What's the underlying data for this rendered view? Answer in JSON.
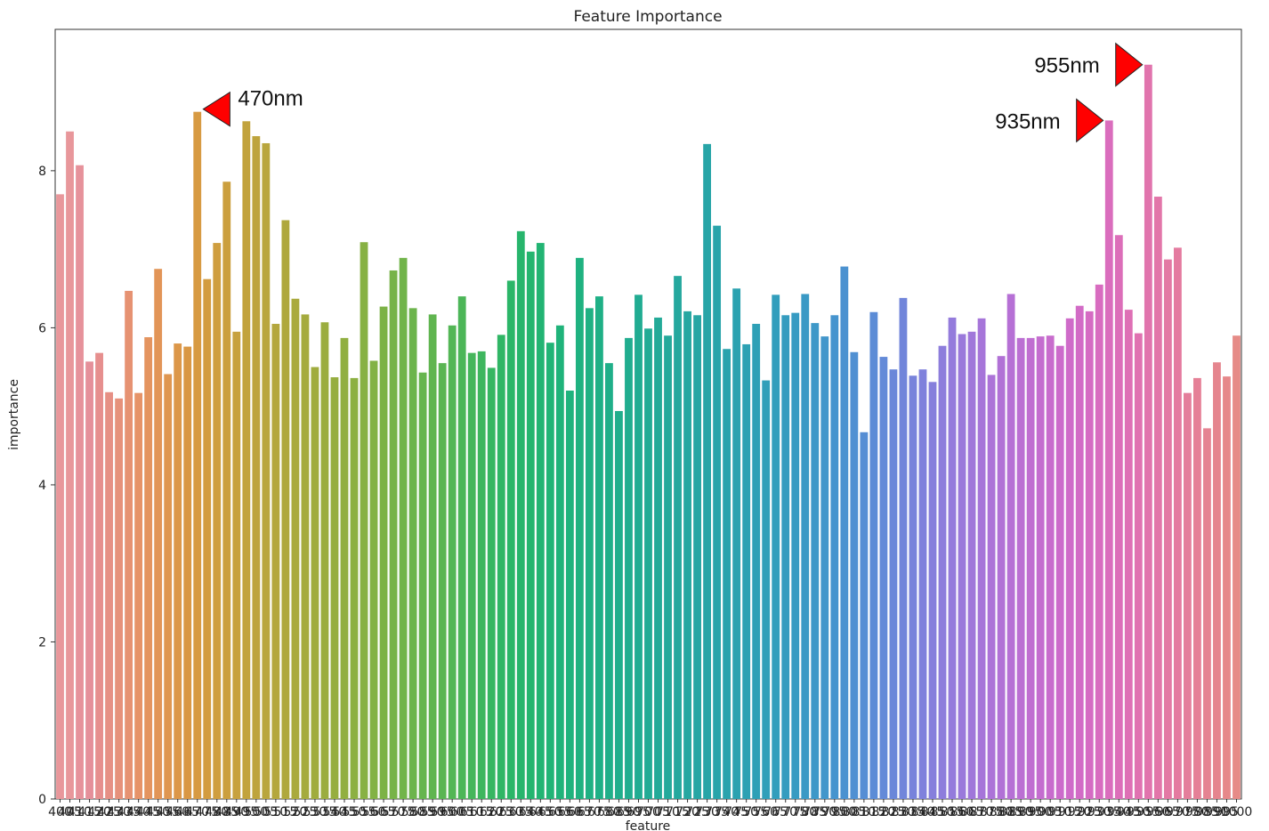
{
  "chart_data": {
    "type": "bar",
    "title": "Feature Importance",
    "xlabel": "feature",
    "ylabel": "importance",
    "ylim": [
      0,
      9.8
    ],
    "yticks": [
      0,
      2,
      4,
      6,
      8
    ],
    "x_tick_labels_rendered": "overlapping (illegible)",
    "categories": [
      "400",
      "405",
      "410",
      "415",
      "420",
      "425",
      "430",
      "435",
      "440",
      "445",
      "450",
      "455",
      "460",
      "465",
      "470",
      "475",
      "480",
      "485",
      "490",
      "495",
      "500",
      "505",
      "510",
      "515",
      "520",
      "525",
      "530",
      "535",
      "540",
      "545",
      "550",
      "555",
      "560",
      "565",
      "570",
      "575",
      "580",
      "585",
      "590",
      "595",
      "600",
      "605",
      "610",
      "615",
      "620",
      "625",
      "630",
      "635",
      "640",
      "645",
      "650",
      "655",
      "660",
      "665",
      "670",
      "675",
      "680",
      "685",
      "690",
      "695",
      "700",
      "705",
      "710",
      "715",
      "720",
      "725",
      "730",
      "735",
      "740",
      "745",
      "750",
      "755",
      "760",
      "765",
      "770",
      "775",
      "780",
      "785",
      "790",
      "795",
      "800",
      "805",
      "810",
      "815",
      "820",
      "825",
      "830",
      "835",
      "840",
      "845",
      "850",
      "855",
      "860",
      "865",
      "870",
      "875",
      "880",
      "885",
      "890",
      "895",
      "900",
      "905",
      "910",
      "915",
      "920",
      "925",
      "930",
      "935",
      "940",
      "945",
      "950",
      "955",
      "960",
      "965",
      "970",
      "975",
      "980",
      "985",
      "990",
      "995",
      "1000"
    ],
    "values": [
      7.7,
      8.5,
      8.07,
      5.57,
      5.68,
      5.18,
      5.1,
      6.47,
      5.17,
      5.88,
      6.75,
      5.41,
      5.8,
      5.76,
      8.75,
      6.62,
      7.08,
      7.86,
      5.95,
      8.63,
      8.44,
      8.35,
      6.05,
      7.37,
      6.37,
      6.17,
      5.5,
      6.07,
      5.37,
      5.87,
      5.36,
      7.09,
      5.58,
      6.27,
      6.73,
      6.89,
      6.25,
      5.43,
      6.17,
      5.55,
      6.03,
      6.4,
      5.68,
      5.7,
      5.49,
      5.91,
      6.6,
      7.23,
      6.97,
      7.08,
      5.81,
      6.03,
      5.2,
      6.89,
      6.25,
      6.4,
      5.55,
      4.94,
      5.87,
      6.42,
      5.99,
      6.13,
      5.9,
      6.66,
      6.21,
      6.16,
      8.34,
      7.3,
      5.73,
      6.5,
      5.79,
      6.05,
      5.33,
      6.42,
      6.16,
      6.19,
      6.43,
      6.06,
      5.89,
      6.16,
      6.78,
      5.69,
      4.67,
      6.2,
      5.63,
      5.47,
      6.38,
      5.39,
      5.47,
      5.31,
      5.77,
      6.13,
      5.92,
      5.95,
      6.12,
      5.4,
      5.64,
      6.43,
      5.87,
      5.87,
      5.89,
      5.9,
      5.77,
      6.12,
      6.28,
      6.21,
      6.55,
      8.64,
      7.18,
      6.23,
      5.93,
      9.35,
      7.67,
      6.87,
      7.02,
      5.17,
      5.36,
      4.72,
      5.56,
      5.38,
      5.9
    ],
    "colors": [
      "#e8979b",
      "#e8979b",
      "#e6929b",
      "#e5909a",
      "#e68f8e",
      "#e69085",
      "#e6917b",
      "#e69272",
      "#e69368",
      "#e4945f",
      "#e29557",
      "#df9650",
      "#dc9749",
      "#d99744",
      "#d79a42",
      "#d39c40",
      "#cf9e3f",
      "#cb9f3e",
      "#c7a13e",
      "#c2a33d",
      "#bea43d",
      "#b9a63d",
      "#b4a73d",
      "#afa83d",
      "#aaaa3d",
      "#a5ab3e",
      "#a0ac3e",
      "#9bad3f",
      "#96ae40",
      "#91af41",
      "#8cb042",
      "#87b143",
      "#82b245",
      "#7cb246",
      "#77b348",
      "#71b44a",
      "#6cb44c",
      "#66b54e",
      "#60b550",
      "#5ab553",
      "#53b655",
      "#4cb658",
      "#45b65b",
      "#3eb65e",
      "#37b661",
      "#30b665",
      "#2bb668",
      "#27b56c",
      "#24b56f",
      "#22b473",
      "#21b476",
      "#20b37a",
      "#1fb37d",
      "#1fb280",
      "#1fb183",
      "#1fb086",
      "#20af89",
      "#20ae8c",
      "#21ad8f",
      "#21ac92",
      "#22ab95",
      "#23aa98",
      "#24a99b",
      "#25a89e",
      "#26a7a1",
      "#27a6a4",
      "#28a5a7",
      "#29a4aa",
      "#2aa3ad",
      "#2ba2b0",
      "#2ca1b3",
      "#2ea0b6",
      "#309fb9",
      "#329ebc",
      "#349cbf",
      "#379bc2",
      "#3a99c5",
      "#3e98c8",
      "#4296cb",
      "#4694ce",
      "#4b92d0",
      "#5090d2",
      "#568ed4",
      "#5c8cd6",
      "#638ad8",
      "#6a87d9",
      "#7185da",
      "#7883db",
      "#7f81dc",
      "#867fdc",
      "#8d7ddc",
      "#947bdc",
      "#9a79db",
      "#a077da",
      "#a675d9",
      "#ac73d8",
      "#b171d6",
      "#b670d5",
      "#bb6fd3",
      "#c06ed1",
      "#c46dcf",
      "#c86ccd",
      "#cc6bcb",
      "#cf6bc9",
      "#d26bc6",
      "#d56bc3",
      "#d86cc0",
      "#da6dbd",
      "#dc6eb9",
      "#de70b5",
      "#e072b1",
      "#e174ad",
      "#e276a9",
      "#e379a4",
      "#e47ba0",
      "#e47e9b",
      "#e58097",
      "#e58392",
      "#e5858e",
      "#e6888a",
      "#e68b87"
    ],
    "annotations": [
      {
        "label": "470nm",
        "bar_index": 14,
        "marker": "left-pointing red triangle"
      },
      {
        "label": "935nm",
        "bar_index": 107,
        "marker": "right-pointing red triangle"
      },
      {
        "label": "955nm",
        "bar_index": 111,
        "marker": "right-pointing red triangle"
      }
    ],
    "annotation_color": "#ff0000",
    "grid": false,
    "legend": "none"
  }
}
